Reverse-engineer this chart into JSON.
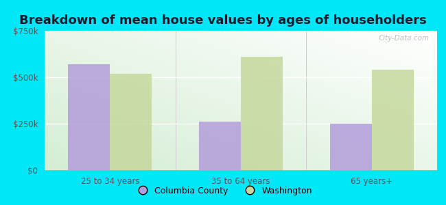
{
  "title": "Breakdown of mean house values by ages of householders",
  "categories": [
    "25 to 34 years",
    "35 to 64 years",
    "65 years+"
  ],
  "columbia_values": [
    570000,
    260000,
    250000
  ],
  "washington_values": [
    520000,
    610000,
    540000
  ],
  "columbia_color": "#b39ddb",
  "washington_color": "#c5d89d",
  "ylim": [
    0,
    750000
  ],
  "yticks": [
    0,
    250000,
    500000,
    750000
  ],
  "ytick_labels": [
    "$0",
    "$250k",
    "$500k",
    "$750k"
  ],
  "legend_columbia": "Columbia County",
  "legend_washington": "Washington",
  "bg_outer": "#00e8f8",
  "watermark": "City-Data.com",
  "title_fontsize": 13,
  "tick_fontsize": 8.5,
  "legend_fontsize": 9
}
